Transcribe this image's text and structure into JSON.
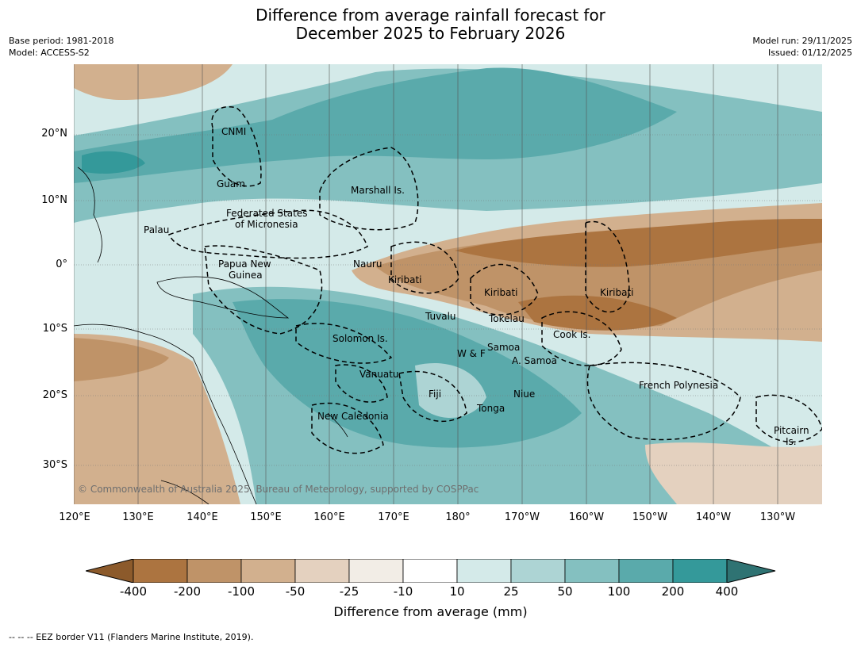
{
  "title": {
    "line1": "Difference from average rainfall forecast for",
    "line2": "December 2025 to February 2026"
  },
  "meta": {
    "base_period": "Base period: 1981-2018",
    "model": "Model: ACCESS-S2",
    "model_run": "Model run: 29/11/2025",
    "issued": "Issued: 01/12/2025"
  },
  "map": {
    "lat_ticks": [
      "20°N",
      "10°N",
      "0°",
      "10°S",
      "20°S",
      "30°S"
    ],
    "lon_ticks": [
      "120°E",
      "130°E",
      "140°E",
      "150°E",
      "160°E",
      "170°E",
      "180°",
      "170°W",
      "160°W",
      "150°W",
      "140°W",
      "130°W"
    ],
    "regions": [
      "CNMI",
      "Guam",
      "Marshall Is.",
      "Federated States",
      "of Micronesia",
      "Palau",
      "Papua New",
      "Guinea",
      "Nauru",
      "Kiribati",
      "Kiribati",
      "Kiribati",
      "Tuvalu",
      "Tokelau",
      "Cook Is.",
      "Solomon Is.",
      "W & F",
      "Samoa",
      "A. Samoa",
      "Vanuatu",
      "Fiji",
      "Niue",
      "Tonga",
      "New Caledonia",
      "French Polynesia",
      "Pitcairn",
      "Is."
    ],
    "copyright": "© Commonwealth of Australia 2025, Bureau of Meteorology, supported by COSPPac"
  },
  "colorbar": {
    "labels": [
      "-400",
      "-200",
      "-100",
      "-50",
      "-25",
      "-10",
      "10",
      "25",
      "50",
      "100",
      "200",
      "400"
    ],
    "colors": [
      "#8c5a2b",
      "#ac7440",
      "#bf9368",
      "#d2b08e",
      "#e4d1bf",
      "#f2ede6",
      "#ffffff",
      "#d4eae9",
      "#add4d4",
      "#84c0c0",
      "#5aaaab",
      "#34999a",
      "#2f7373"
    ],
    "title": "Difference from average (mm)"
  },
  "legend": "--  --  -- EEZ border V11 (Flanders Marine Institute, 2019)."
}
